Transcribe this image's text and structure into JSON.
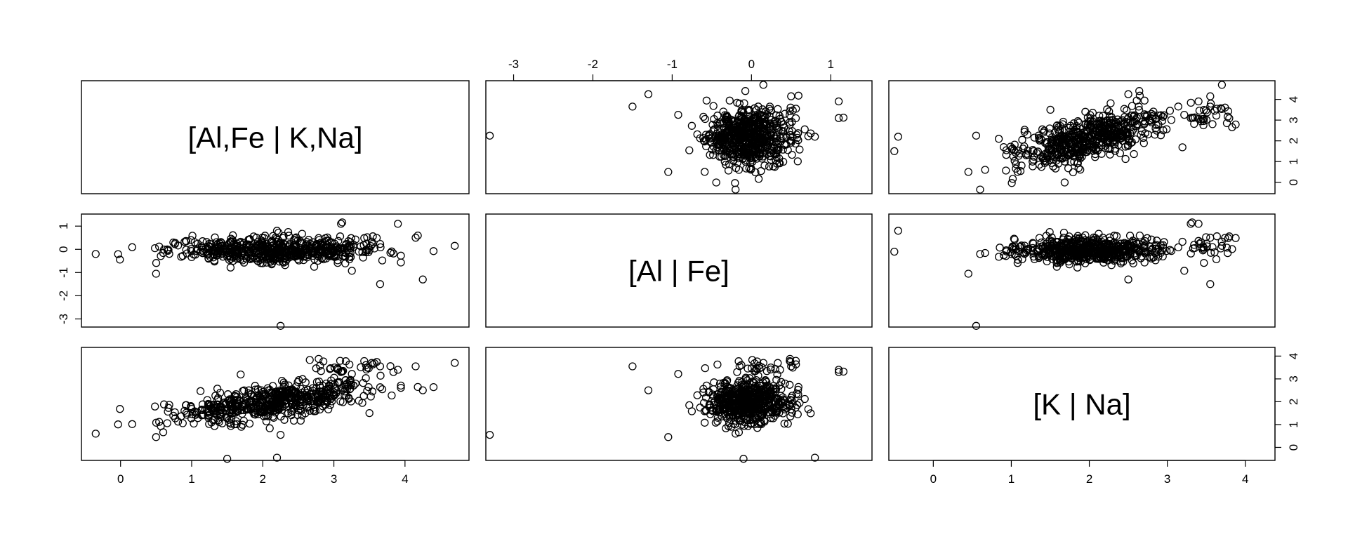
{
  "chart_data": {
    "type": "scatter",
    "variables": [
      "[Al,Fe | K,Na]",
      "[Al | Fe]",
      "[K | Na]"
    ],
    "tick_values": {
      "v0": [
        0,
        1,
        2,
        3,
        4
      ],
      "v1": [
        -3,
        -2,
        -1,
        0,
        1
      ],
      "v2": [
        0,
        1,
        2,
        3,
        4
      ]
    },
    "tick_labels": {
      "v0": [
        "0",
        "1",
        "2",
        "3",
        "4"
      ],
      "v1": [
        "-3",
        "-2",
        "-1",
        "0",
        "1"
      ],
      "v2": [
        "0",
        "1",
        "2",
        "3",
        "4"
      ]
    },
    "axis_ranges": {
      "v0": [
        -0.55,
        4.9
      ],
      "v1": [
        -3.35,
        1.52
      ],
      "v2": [
        -0.57,
        4.38
      ]
    },
    "axes_shown": {
      "bottom_of_column_0": true,
      "top_of_column_1": true,
      "bottom_of_column_2": true,
      "left_of_row_1": true,
      "right_of_row_0": true,
      "right_of_row_2": true
    },
    "grid": false,
    "n_points": 620,
    "outliers": [
      {
        "v0": 2.25,
        "v1": -3.3,
        "v2": 0.55
      },
      {
        "v0": -0.35,
        "v1": -0.2,
        "v2": 0.6
      },
      {
        "v0": 4.7,
        "v1": 0.15,
        "v2": 3.7
      },
      {
        "v0": 3.9,
        "v1": 1.1,
        "v2": 3.4
      },
      {
        "v0": 3.1,
        "v1": 1.1,
        "v2": 3.3
      },
      {
        "v0": 4.25,
        "v1": -1.3,
        "v2": 2.5
      },
      {
        "v0": 3.65,
        "v1": -1.5,
        "v2": 3.55
      },
      {
        "v0": 1.5,
        "v1": -0.1,
        "v2": -0.5
      },
      {
        "v0": 2.2,
        "v1": 0.8,
        "v2": -0.45
      },
      {
        "v0": 4.15,
        "v1": 0.5,
        "v2": 3.55
      },
      {
        "v0": 0.5,
        "v1": -1.05,
        "v2": 0.45
      }
    ],
    "sample_points_v0_v1_v2": [
      [
        1.5,
        -0.1,
        2.0
      ],
      [
        1.8,
        0.0,
        2.1
      ],
      [
        2.0,
        0.1,
        2.2
      ],
      [
        2.3,
        0.0,
        2.0
      ],
      [
        2.6,
        -0.2,
        1.9
      ],
      [
        1.2,
        -0.2,
        1.6
      ],
      [
        0.8,
        -0.2,
        1.2
      ],
      [
        2.9,
        -0.1,
        2.4
      ],
      [
        3.2,
        0.2,
        2.6
      ],
      [
        0.2,
        -0.1,
        0.7
      ],
      [
        1.0,
        0.1,
        1.5
      ],
      [
        2.1,
        -0.3,
        2.3
      ],
      [
        2.4,
        0.2,
        2.5
      ],
      [
        1.7,
        -0.4,
        1.8
      ],
      [
        2.7,
        0.3,
        2.2
      ]
    ]
  }
}
